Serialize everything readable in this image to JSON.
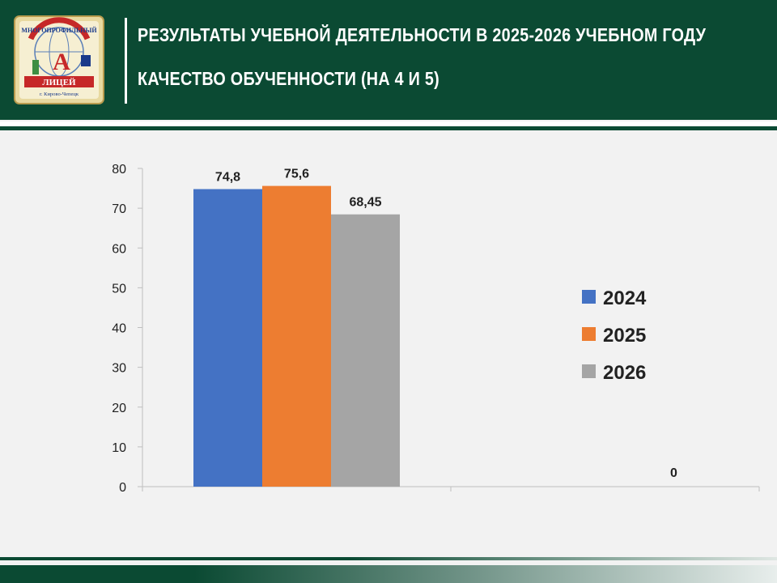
{
  "header": {
    "title_line1": "РЕЗУЛЬТАТЫ УЧЕБНОЙ ДЕЯТЕЛЬНОСТИ В 2025-2026 УЧЕБНОМ ГОДУ",
    "title_line2": "КАЧЕСТВО ОБУЧЕННОСТИ (НА 4 И 5)",
    "logo": {
      "icon": "school-emblem-icon",
      "text_top": "МНОГОПРОФИЛЬНЫЙ",
      "text_main": "ЛИЦЕЙ",
      "text_city": "г. Кирово-Чепецк",
      "colors": {
        "frame": "#e8d9a0",
        "ribbon": "#c62828",
        "text": "#1a3a8a"
      }
    }
  },
  "colors": {
    "brand": "#0b4a33",
    "background": "#f2f2f2"
  },
  "chart_data": {
    "type": "bar",
    "categories": [
      "",
      ""
    ],
    "series": [
      {
        "name": "2024",
        "values": [
          74.8,
          null
        ],
        "labels": [
          "74,8",
          null
        ],
        "color": "#4472c4"
      },
      {
        "name": "2025",
        "values": [
          75.6,
          null
        ],
        "labels": [
          "75,6",
          null
        ],
        "color": "#ed7d31"
      },
      {
        "name": "2026",
        "values": [
          68.45,
          0
        ],
        "labels": [
          "68,45",
          "0"
        ],
        "color": "#a5a5a5"
      }
    ],
    "yticks": [
      "0",
      "10",
      "20",
      "30",
      "40",
      "50",
      "60",
      "70",
      "80"
    ],
    "ylim": [
      0,
      80
    ],
    "legend_position": "right",
    "grid": false
  }
}
